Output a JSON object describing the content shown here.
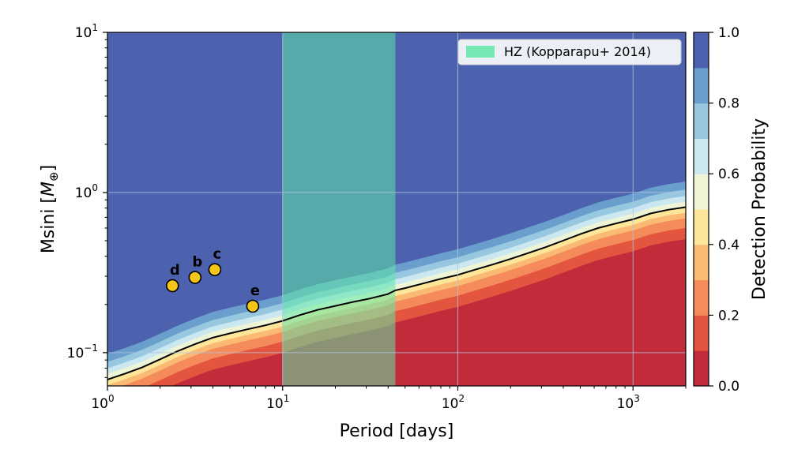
{
  "chart_data": {
    "type": "contour",
    "title": "",
    "xlabel": "Period [days]",
    "ylabel_main": "Msini [",
    "ylabel_symbol": "M",
    "ylabel_subscript": "⊕",
    "ylabel_end": "]",
    "x_scale": "log",
    "y_scale": "log",
    "xlim": [
      1,
      2000
    ],
    "ylim": [
      0.062,
      10
    ],
    "x_ticks": [
      {
        "value": 1,
        "base": "10",
        "exp": "0"
      },
      {
        "value": 10,
        "base": "10",
        "exp": "1"
      },
      {
        "value": 100,
        "base": "10",
        "exp": "2"
      },
      {
        "value": 1000,
        "base": "10",
        "exp": "3"
      }
    ],
    "y_ticks": [
      {
        "value": 0.1,
        "base": "10",
        "exp": "−1"
      },
      {
        "value": 1,
        "base": "10",
        "exp": "0"
      },
      {
        "value": 10,
        "base": "10",
        "exp": "1"
      }
    ],
    "grid": true,
    "colorbar": {
      "label": "Detection Probability",
      "ticks": [
        "0.0",
        "0.2",
        "0.4",
        "0.6",
        "0.8",
        "1.0"
      ],
      "levels": 10,
      "colors": [
        "#c12b3a",
        "#e3553f",
        "#f58a5a",
        "#fbba74",
        "#fde59a",
        "#eef5d6",
        "#cbe7f0",
        "#98c7e0",
        "#6a9fcd",
        "#4c62ae"
      ]
    },
    "detection_curve_x": [
      1,
      1.26,
      1.58,
      2,
      2.51,
      3.16,
      3.98,
      5.01,
      6.31,
      7.94,
      10,
      12.6,
      15.8,
      20,
      25.1,
      31.6,
      39.8,
      44,
      50,
      63,
      79,
      100,
      126,
      158,
      200,
      251,
      316,
      398,
      501,
      631,
      794,
      1000,
      1259,
      1585,
      2000
    ],
    "detection_50_curve_y": [
      0.068,
      0.074,
      0.081,
      0.091,
      0.102,
      0.113,
      0.124,
      0.132,
      0.14,
      0.148,
      0.158,
      0.172,
      0.185,
      0.196,
      0.207,
      0.218,
      0.232,
      0.245,
      0.253,
      0.27,
      0.288,
      0.306,
      0.33,
      0.355,
      0.385,
      0.418,
      0.455,
      0.5,
      0.55,
      0.6,
      0.64,
      0.68,
      0.74,
      0.78,
      0.81
    ],
    "habitable_zone": {
      "label": "HZ (Kopparapu+ 2014)",
      "period_min": 10,
      "period_max": 44,
      "color": "#5ee8a8"
    },
    "planets": [
      {
        "name": "d",
        "period": 2.35,
        "msini": 0.262
      },
      {
        "name": "b",
        "period": 3.16,
        "msini": 0.295
      },
      {
        "name": "c",
        "period": 4.1,
        "msini": 0.33
      },
      {
        "name": "e",
        "period": 6.75,
        "msini": 0.195
      }
    ],
    "planet_color": "#f5c518"
  }
}
